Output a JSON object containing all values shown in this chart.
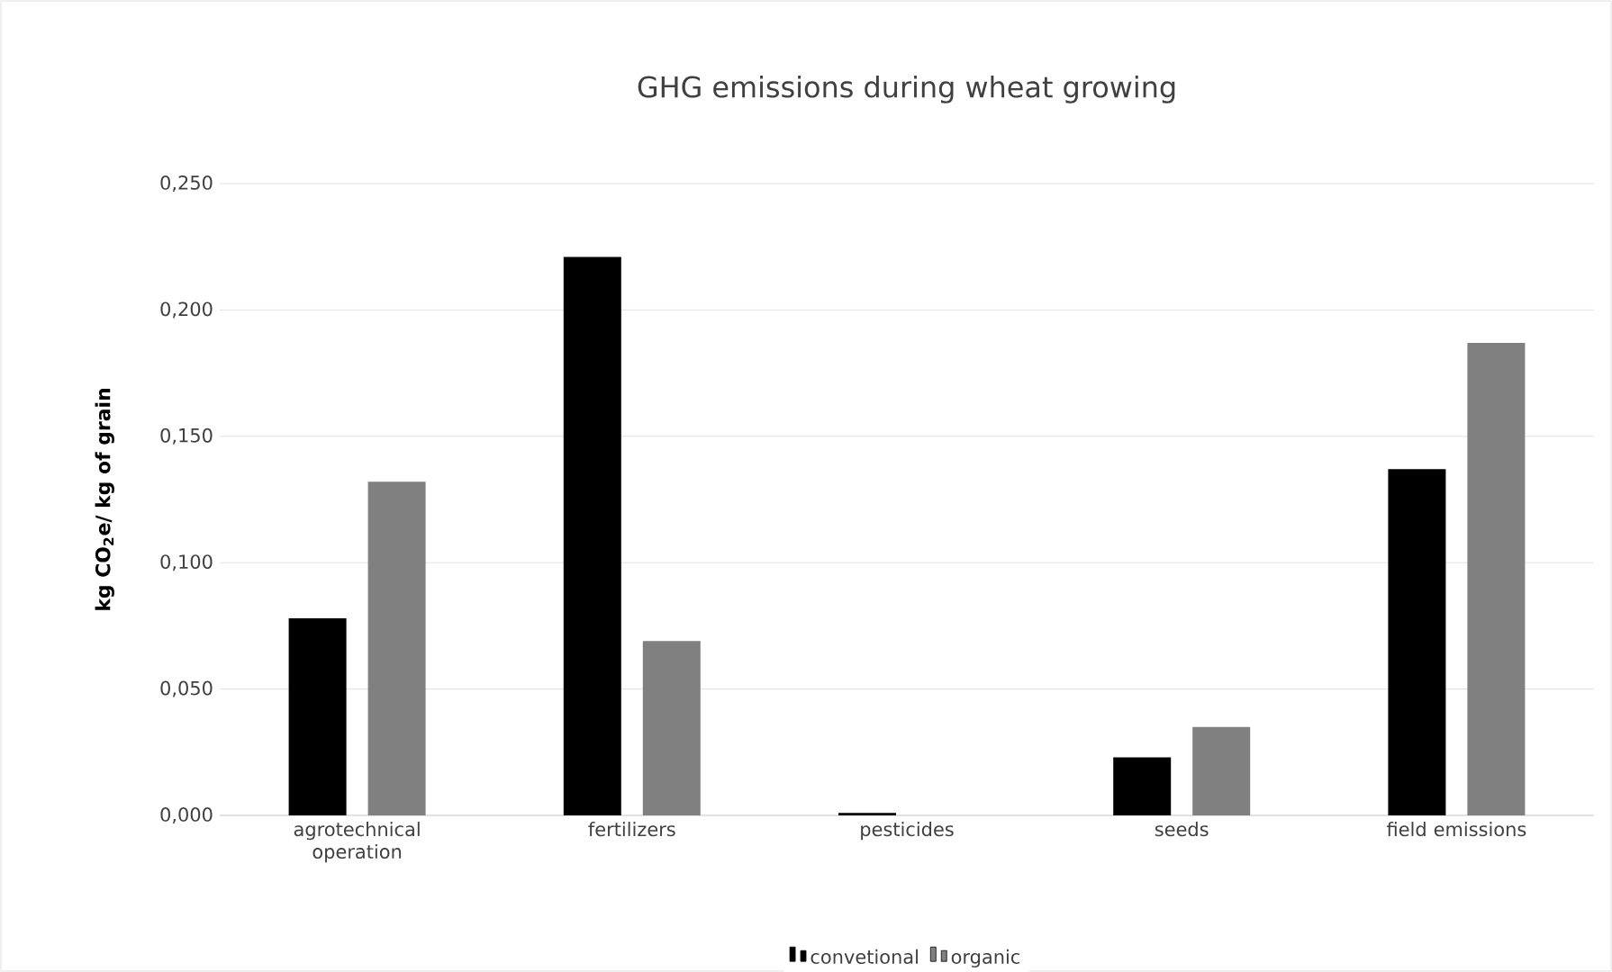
{
  "chart_data": {
    "type": "bar",
    "title": "GHG emissions during wheat growing",
    "ylabel": "kg CO$_{2}$e/ kg of grain",
    "categories": [
      "agrotechnical operation",
      "fertilizers",
      "pesticides",
      "seeds",
      "field emissions"
    ],
    "series": [
      {
        "name": "convetional",
        "color": "#000000",
        "values": [
          0.078,
          0.221,
          0.001,
          0.023,
          0.137
        ]
      },
      {
        "name": "organic",
        "color": "#808080",
        "values": [
          0.132,
          0.069,
          0,
          0.035,
          0.187
        ]
      }
    ],
    "ylim": [
      0,
      0.25
    ],
    "yticks": [
      {
        "value": 0,
        "label": "0,000"
      },
      {
        "value": 0.05,
        "label": "0,050"
      },
      {
        "value": 0.1,
        "label": "0,100"
      },
      {
        "value": 0.15,
        "label": "0,150"
      },
      {
        "value": 0.2,
        "label": "0,200"
      },
      {
        "value": 0.25,
        "label": "0,250"
      }
    ],
    "grid": "y",
    "legend": "bottom"
  }
}
